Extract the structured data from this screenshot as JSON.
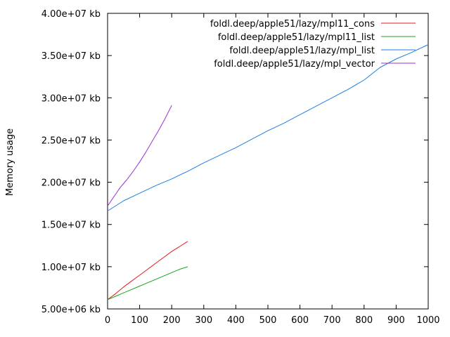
{
  "chart_data": {
    "type": "line",
    "title": "",
    "xlabel": "",
    "ylabel": "Memory usage",
    "xlim": [
      0,
      1000
    ],
    "ylim": [
      5000000,
      40000000
    ],
    "xticks": [
      0,
      100,
      200,
      300,
      400,
      500,
      600,
      700,
      800,
      900,
      1000
    ],
    "xtick_labels": [
      "0",
      "100",
      "200",
      "300",
      "400",
      "500",
      "600",
      "700",
      "800",
      "900",
      "1000"
    ],
    "yticks": [
      5000000,
      10000000,
      15000000,
      20000000,
      25000000,
      30000000,
      35000000,
      40000000
    ],
    "ytick_labels": [
      "5.00e+06 kb",
      "1.00e+07 kb",
      "1.50e+07 kb",
      "2.00e+07 kb",
      "2.50e+07 kb",
      "3.00e+07 kb",
      "3.50e+07 kb",
      "4.00e+07 kb"
    ],
    "grid": false,
    "legend_position": "top-right",
    "series": [
      {
        "name": "foldl.deep/apple51/lazy/mpl11_cons",
        "color": "#e41a1c",
        "x": [
          0,
          25,
          50,
          75,
          100,
          125,
          150,
          175,
          200,
          225,
          250
        ],
        "y": [
          6100000,
          6800000,
          7600000,
          8300000,
          9000000,
          9700000,
          10400000,
          11100000,
          11800000,
          12400000,
          13000000
        ]
      },
      {
        "name": "foldl.deep/apple51/lazy/mpl11_list",
        "color": "#1aa31a",
        "x": [
          0,
          25,
          50,
          75,
          100,
          125,
          150,
          175,
          200,
          225,
          250
        ],
        "y": [
          6100000,
          6500000,
          6900000,
          7300000,
          7700000,
          8100000,
          8500000,
          8900000,
          9300000,
          9700000,
          10000000
        ]
      },
      {
        "name": "foldl.deep/apple51/lazy/mpl_list",
        "color": "#1e7fe0",
        "x": [
          0,
          50,
          100,
          150,
          200,
          250,
          300,
          350,
          400,
          450,
          500,
          550,
          600,
          650,
          700,
          750,
          800,
          850,
          900,
          950,
          1000
        ],
        "y": [
          16600000,
          17800000,
          18700000,
          19600000,
          20400000,
          21300000,
          22300000,
          23200000,
          24100000,
          25100000,
          26100000,
          27000000,
          28000000,
          29000000,
          30000000,
          31000000,
          32100000,
          33600000,
          34600000,
          35400000,
          36300000
        ]
      },
      {
        "name": "foldl.deep/apple51/lazy/mpl_vector",
        "color": "#9b30d9",
        "x": [
          0,
          20,
          40,
          60,
          80,
          100,
          120,
          140,
          160,
          180,
          200
        ],
        "y": [
          17200000,
          18300000,
          19400000,
          20300000,
          21300000,
          22400000,
          23600000,
          24900000,
          26200000,
          27600000,
          29100000
        ]
      }
    ]
  }
}
